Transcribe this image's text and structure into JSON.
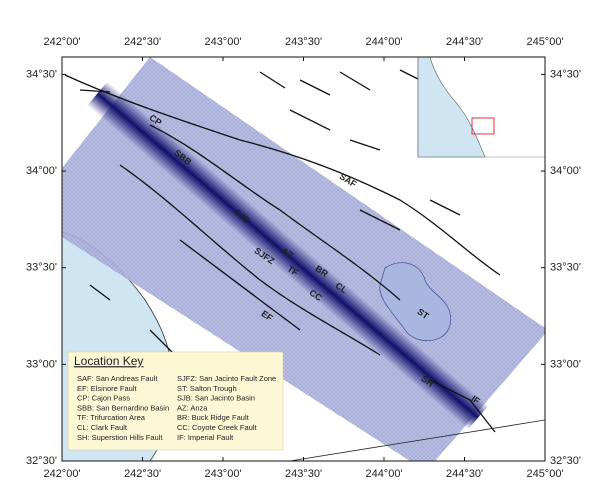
{
  "map": {
    "xlim": [
      242,
      245
    ],
    "ylim": [
      32.5,
      34.59
    ],
    "xticks": [
      {
        "value": 242,
        "label": "242°00'"
      },
      {
        "value": 242.5,
        "label": "242°30'"
      },
      {
        "value": 243,
        "label": "243°00'"
      },
      {
        "value": 243.5,
        "label": "243°30'"
      },
      {
        "value": 244,
        "label": "244°00'"
      },
      {
        "value": 244.5,
        "label": "244°30'"
      },
      {
        "value": 245,
        "label": "245°00'"
      }
    ],
    "yticks": [
      {
        "value": 32.5,
        "label": "32°30'"
      },
      {
        "value": 33,
        "label": "33°00'"
      },
      {
        "value": 33.5,
        "label": "33°30'"
      },
      {
        "value": 34,
        "label": "34°00'"
      },
      {
        "value": 34.5,
        "label": "34°30'"
      }
    ],
    "fault_labels": [
      "SAF",
      "CP",
      "SBB",
      "SJB",
      "SJFZ",
      "AZ",
      "TF",
      "BR",
      "CC",
      "CL",
      "ST",
      "EF",
      "SH",
      "IF"
    ],
    "location_key": {
      "title": "Location Key",
      "left": [
        "SAF: San Andreas Fault",
        "EF: Elsinore Fault",
        "CP: Cajon Pass",
        "SBB: San Bernardino Basin",
        "TF: Trifurcation Area",
        "CL: Clark Fault",
        "SH: Superstion Hills Fault"
      ],
      "right": [
        "SJFZ:  San Jacinto Fault Zone",
        "ST: Salton Trough",
        "SJB: San Jacinto Basin",
        "AZ: Anza",
        "BR: Buck Ridge Fault",
        "CC: Coyote Creek Fault",
        "IF: Imperial Fault"
      ]
    }
  }
}
